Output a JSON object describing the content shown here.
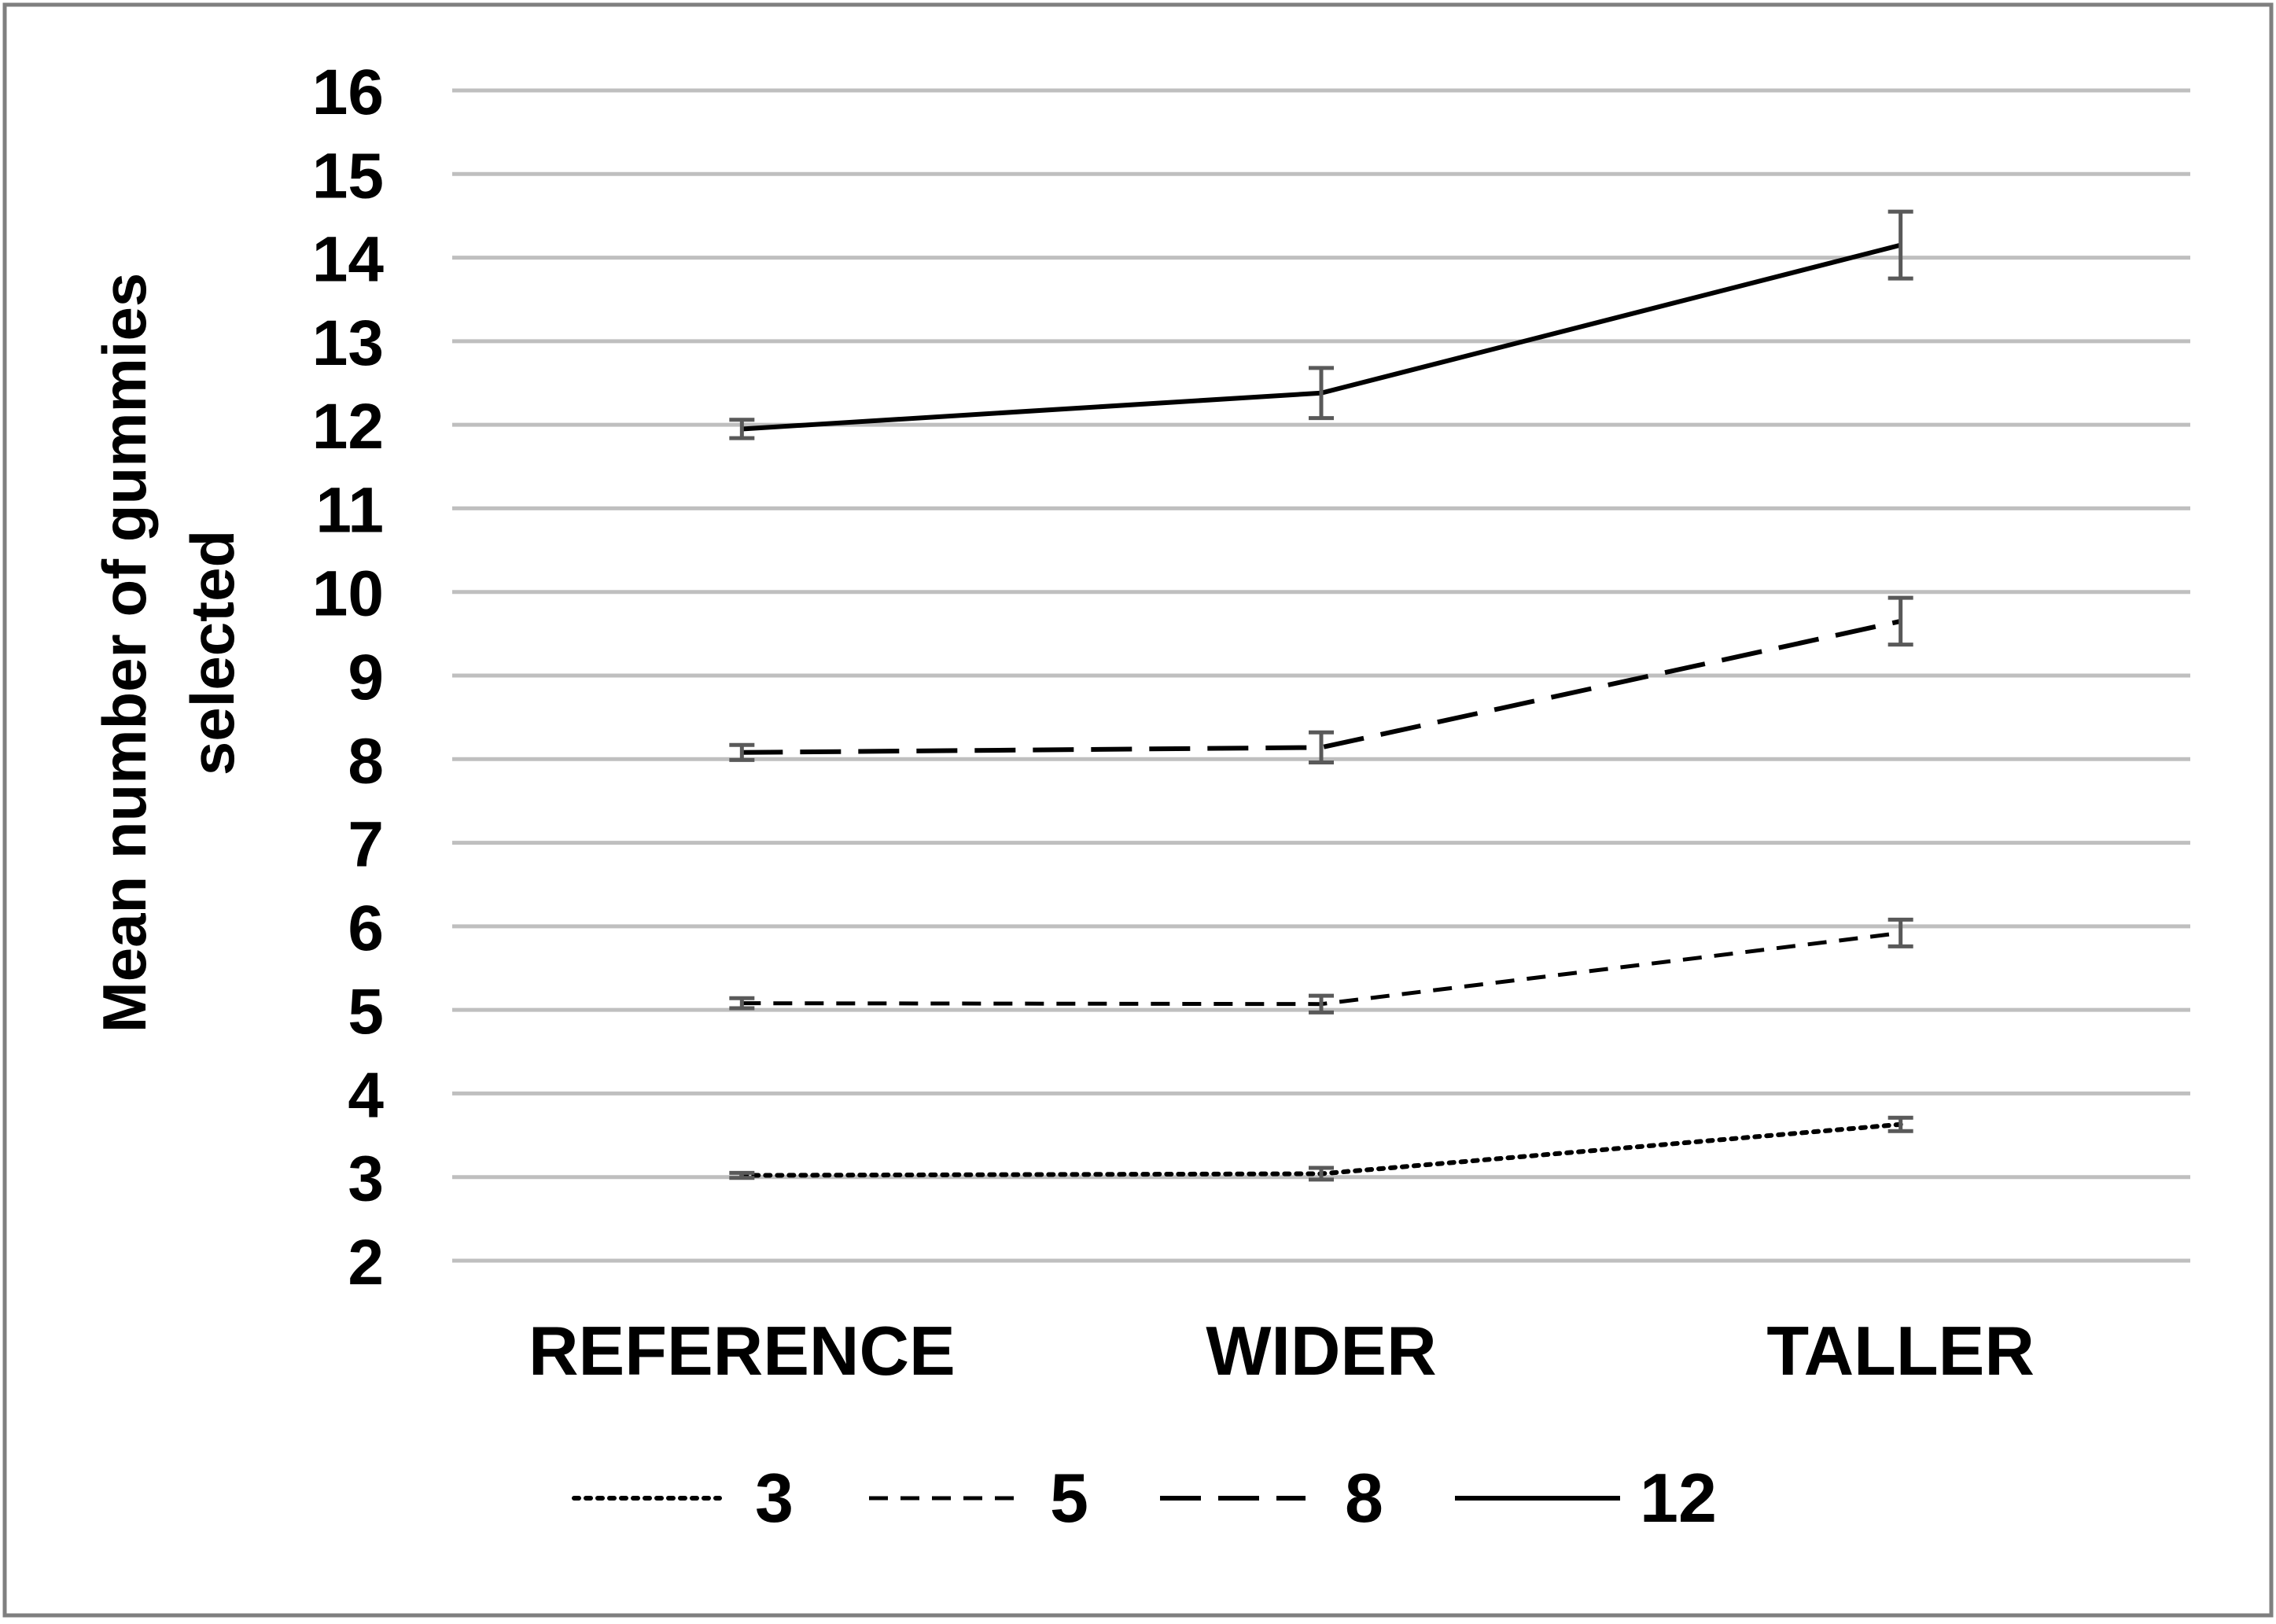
{
  "chart_data": {
    "type": "line",
    "title": "",
    "xlabel": "",
    "ylabel": "Mean number of gummies selected",
    "ylim": [
      2,
      16
    ],
    "yticks": [
      2,
      3,
      4,
      5,
      6,
      7,
      8,
      9,
      10,
      11,
      12,
      13,
      14,
      15,
      16
    ],
    "grid": true,
    "legend_position": "bottom",
    "categories": [
      "REFERENCE",
      "WIDER",
      "TALLER"
    ],
    "series": [
      {
        "name": "3",
        "dash": "dotted",
        "values": [
          3.02,
          3.04,
          3.63
        ],
        "errors": [
          0.03,
          0.07,
          0.08
        ]
      },
      {
        "name": "5",
        "dash": "short-dash",
        "values": [
          5.08,
          5.07,
          5.92
        ],
        "errors": [
          0.06,
          0.1,
          0.16
        ]
      },
      {
        "name": "8",
        "dash": "long-dash",
        "values": [
          8.08,
          8.14,
          9.65
        ],
        "errors": [
          0.09,
          0.18,
          0.28
        ]
      },
      {
        "name": "12",
        "dash": "solid",
        "values": [
          11.95,
          12.38,
          14.15
        ],
        "errors": [
          0.11,
          0.3,
          0.4
        ]
      }
    ],
    "colors": {
      "line": "#000000",
      "grid": "#bfbfbf",
      "error_bar": "#595959",
      "border": "#7f7f7f"
    }
  }
}
